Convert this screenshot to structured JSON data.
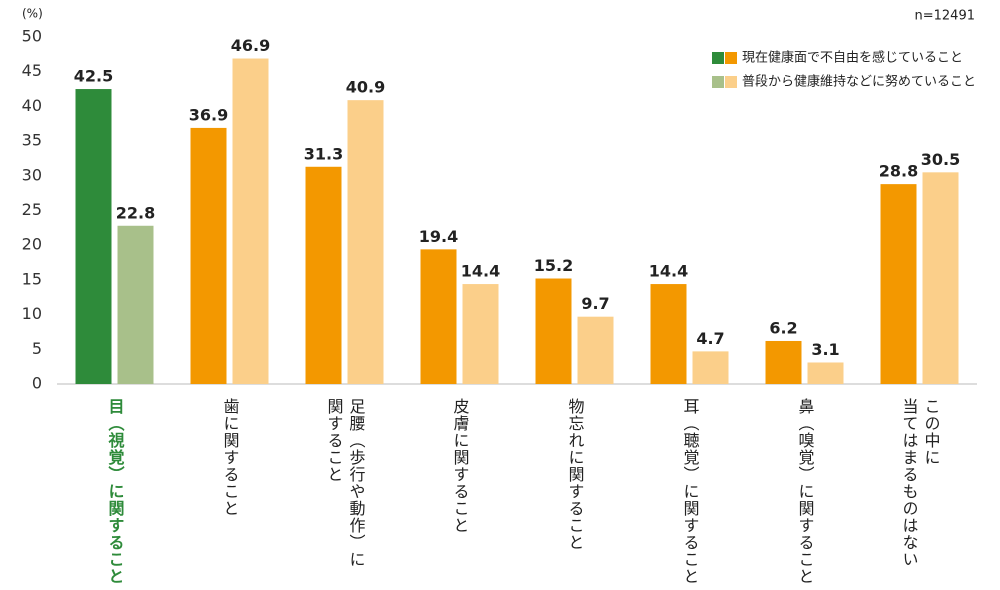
{
  "chart_data": {
    "type": "bar",
    "y_unit": "(%)",
    "note": "n=12491",
    "categories": [
      "目（視覚）に関すること",
      "歯に関すること",
      "足腰（歩行や動作）に\n関すること",
      "皮膚に関すること",
      "物忘れに関すること",
      "耳（聴覚）に関すること",
      "鼻（嗅覚）に関すること",
      "この中に\n当てはまるものはない"
    ],
    "category_colors": [
      "#2e8b3a",
      "#222",
      "#222",
      "#222",
      "#222",
      "#222",
      "#222",
      "#222"
    ],
    "series": [
      {
        "name": "現在健康面で不自由を感じていること",
        "colors": [
          "#2e8b3a",
          "#f39800",
          "#f39800",
          "#f39800",
          "#f39800",
          "#f39800",
          "#f39800",
          "#f39800"
        ],
        "values": [
          42.5,
          36.9,
          31.3,
          19.4,
          15.2,
          14.4,
          6.2,
          28.8
        ]
      },
      {
        "name": "普段から健康維持などに努めていること",
        "colors": [
          "#a8c08a",
          "#fbcf8a",
          "#fbcf8a",
          "#fbcf8a",
          "#fbcf8a",
          "#fbcf8a",
          "#fbcf8a",
          "#fbcf8a"
        ],
        "values": [
          22.8,
          46.9,
          40.9,
          14.4,
          9.7,
          4.7,
          3.1,
          30.5
        ]
      }
    ],
    "ylim": [
      0,
      50
    ],
    "yticks": [
      0,
      5,
      10,
      15,
      20,
      25,
      30,
      35,
      40,
      45,
      50
    ],
    "grid": false
  }
}
